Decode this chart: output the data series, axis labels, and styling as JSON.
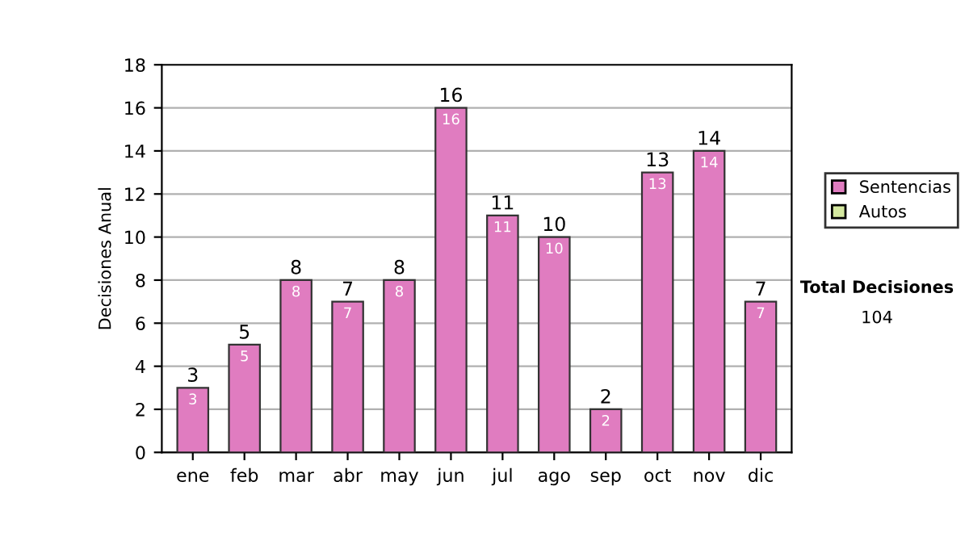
{
  "chart_data": {
    "type": "bar",
    "ylabel": "Decisiones Anual",
    "categories": [
      "ene",
      "feb",
      "mar",
      "abr",
      "may",
      "jun",
      "jul",
      "ago",
      "sep",
      "oct",
      "nov",
      "dic"
    ],
    "series": [
      {
        "name": "Sentencias",
        "color": "#e07cc0",
        "values": [
          3,
          5,
          8,
          7,
          8,
          16,
          11,
          10,
          2,
          13,
          14,
          7
        ]
      },
      {
        "name": "Autos",
        "color": "#d4e8a0",
        "values": [
          null,
          null,
          null,
          null,
          null,
          null,
          null,
          null,
          null,
          null,
          null,
          null
        ]
      }
    ],
    "stacked": true,
    "data_labels": true,
    "totals": [
      "3",
      "5",
      "8",
      "7",
      "8",
      "16",
      "11",
      "10",
      "2",
      "13",
      "14",
      "7"
    ],
    "ylim": [
      0,
      18
    ],
    "yticks": [
      0,
      2,
      4,
      6,
      8,
      10,
      12,
      14,
      16,
      18
    ],
    "grid": "y",
    "legend": "right",
    "annotations": [
      "Total Decisiones",
      "104"
    ]
  }
}
